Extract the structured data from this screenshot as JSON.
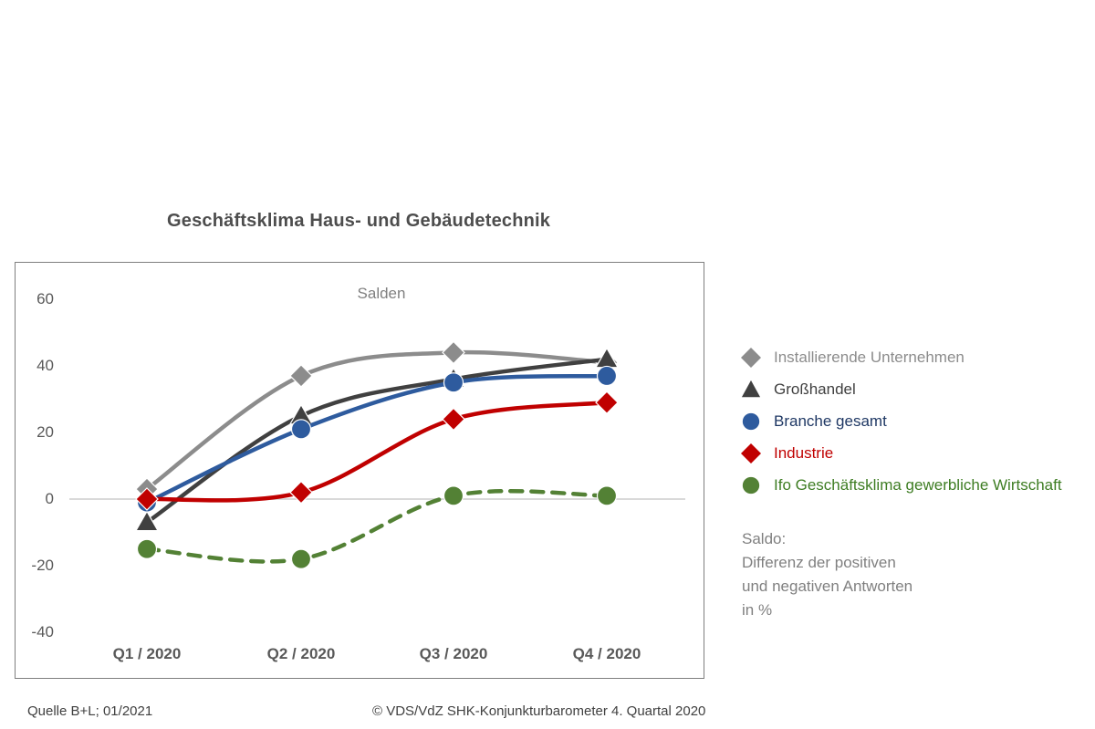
{
  "title": "Geschäftsklima Haus- und Gebäudetechnik",
  "chart_data": {
    "type": "line",
    "title": "Geschäftsklima Haus- und Gebäudetechnik",
    "subtitle": "Salden",
    "xlabel": "",
    "ylabel": "",
    "categories": [
      "Q1 / 2020",
      "Q2 / 2020",
      "Q3 / 2020",
      "Q4 / 2020"
    ],
    "y_ticks": [
      60,
      40,
      20,
      0,
      -20,
      -40
    ],
    "ylim": [
      -48,
      68
    ],
    "grid": "zero-baseline-only",
    "legend_position": "right",
    "series": [
      {
        "name": "Installierende Unternehmen",
        "values": [
          3,
          37,
          44,
          41
        ],
        "color": "#8c8c8c",
        "text_color": "#8c8c8c",
        "marker": "diamond",
        "style": "solid"
      },
      {
        "name": "Großhandel",
        "values": [
          -7,
          25,
          36,
          42
        ],
        "color": "#404040",
        "text_color": "#404040",
        "marker": "triangle",
        "style": "solid"
      },
      {
        "name": "Branche gesamt",
        "values": [
          -1,
          21,
          35,
          37
        ],
        "color": "#2e5b9e",
        "text_color": "#1f3864",
        "marker": "circle",
        "style": "solid"
      },
      {
        "name": "Industrie",
        "values": [
          0,
          2,
          24,
          29
        ],
        "color": "#c00000",
        "text_color": "#c00000",
        "marker": "diamond",
        "style": "solid"
      },
      {
        "name": "Ifo Geschäftsklima gewerbliche Wirtschaft",
        "values": [
          -15,
          -18,
          1,
          1
        ],
        "color": "#538135",
        "text_color": "#3e7d23",
        "marker": "circle",
        "style": "dashed"
      }
    ],
    "colors": {
      "baseline": "#d9d9d9",
      "axis_text": "#595959",
      "box_border": "#7f7f7f"
    }
  },
  "note": {
    "lines": [
      "Saldo:",
      "Differenz der positiven",
      "und negativen Antworten",
      "in %"
    ]
  },
  "footer": {
    "source": "Quelle B+L; 01/2021",
    "copyright": "© VDS/VdZ SHK-Konjunkturbarometer 4. Quartal 2020"
  }
}
